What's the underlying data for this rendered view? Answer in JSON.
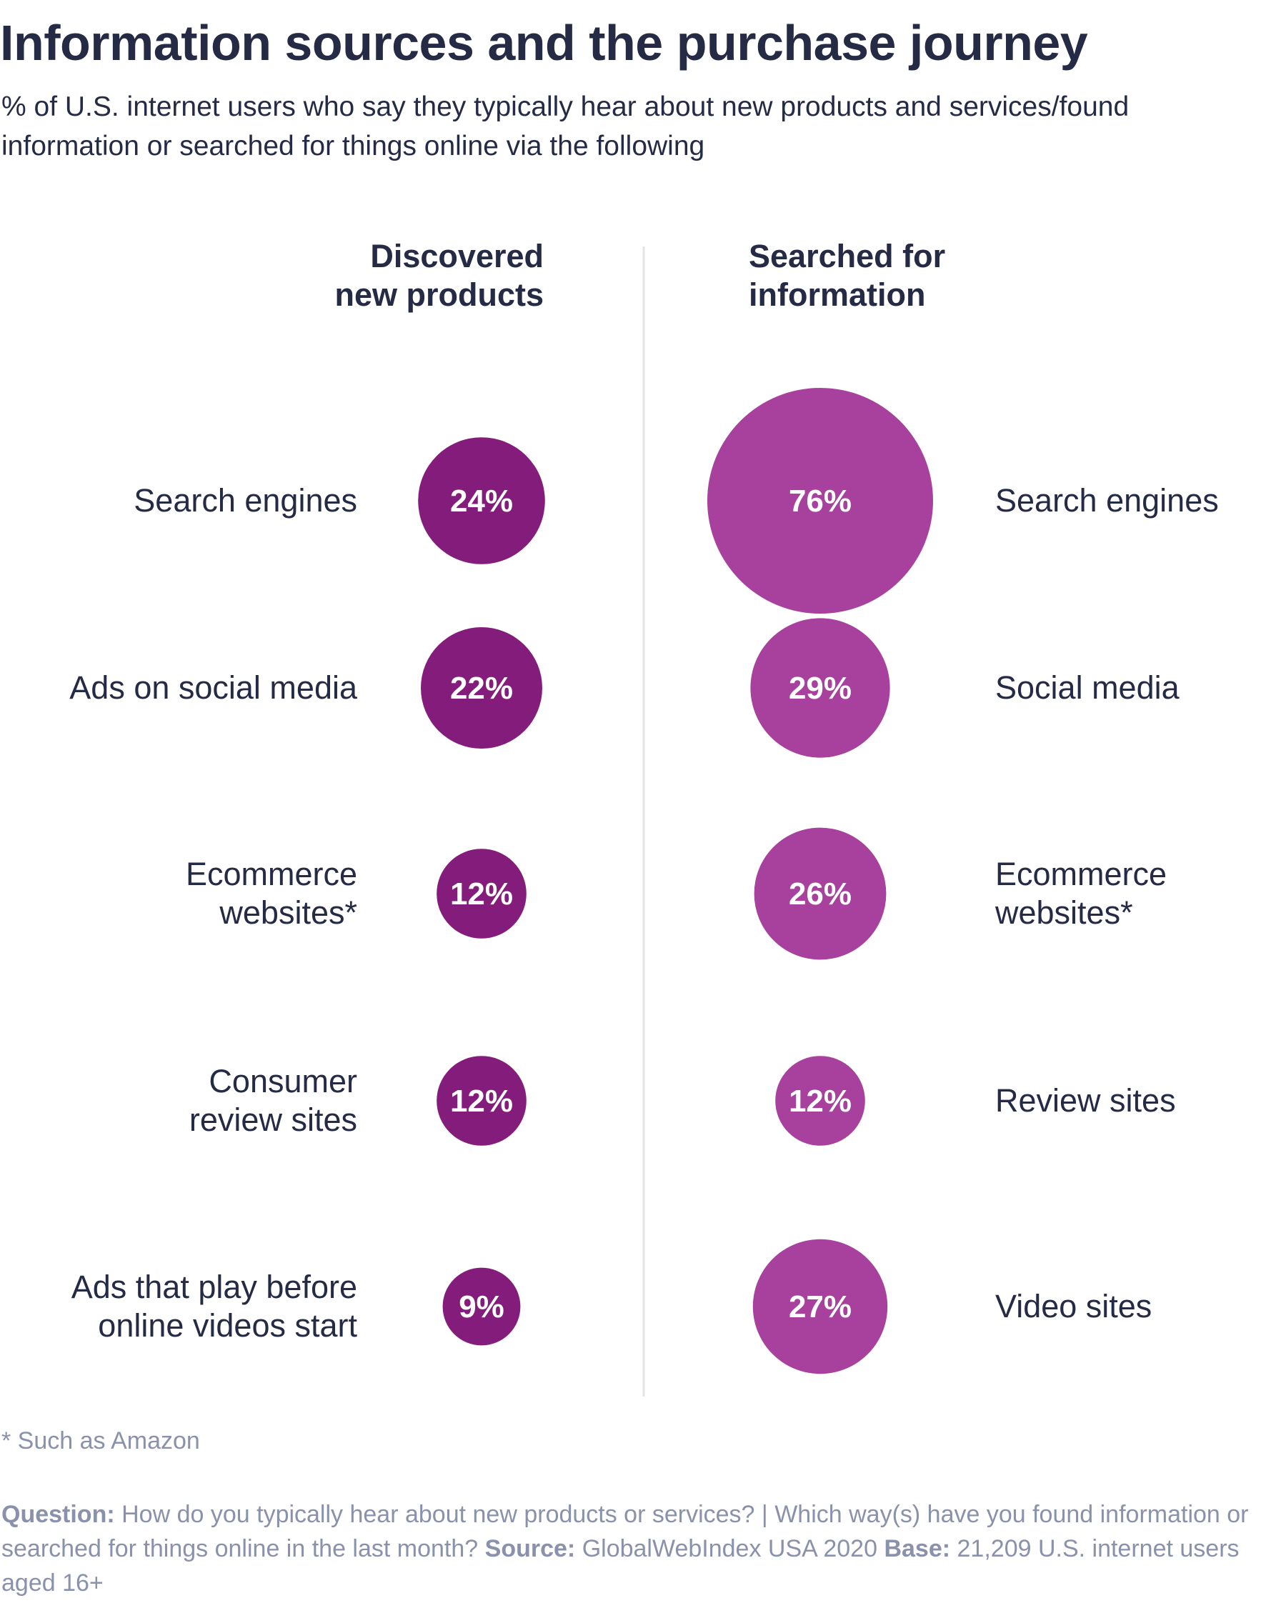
{
  "title": "Information sources and the purchase journey",
  "subtitle": "% of U.S. internet users who say they typically hear about new products and services/found information or searched for things online via the following",
  "footnote": "* Such as Amazon",
  "source_note": {
    "question_label": "Question:",
    "question_text": "How do you typically hear about new products or services? | Which way(s) have you found information or searched for things online in the last month?",
    "source_label": "Source:",
    "source_text": "GlobalWebIndex USA 2020",
    "base_label": "Base:",
    "base_text": "21,209 U.S. internet users aged 16+"
  },
  "chart_data": {
    "type": "bubble",
    "unit": "%",
    "series": [
      {
        "name": "Discovered new products",
        "color": "#841c7b",
        "categories": [
          "Search engines",
          "Ads on social media",
          "Ecommerce websites*",
          "Consumer review sites",
          "Ads that play before online videos start"
        ],
        "values": [
          24,
          22,
          12,
          12,
          9
        ],
        "value_labels": [
          "24%",
          "22%",
          "12%",
          "12%",
          "9%"
        ]
      },
      {
        "name": "Searched for information",
        "color": "#a8409d",
        "categories": [
          "Search engines",
          "Social media",
          "Ecommerce websites*",
          "Review sites",
          "Video sites"
        ],
        "values": [
          76,
          29,
          26,
          12,
          27
        ],
        "value_labels": [
          "76%",
          "29%",
          "26%",
          "12%",
          "27%"
        ]
      }
    ],
    "column_headers": [
      [
        "Discovered",
        "new products"
      ],
      [
        "Searched for",
        "information"
      ]
    ],
    "row_labels": [
      [
        [
          "Search engines"
        ],
        [
          "Ads on social media"
        ],
        [
          "Ecommerce",
          "websites*"
        ],
        [
          "Consumer",
          "review sites"
        ],
        [
          "Ads that play before",
          "online videos start"
        ]
      ],
      [
        [
          "Search engines"
        ],
        [
          "Social media"
        ],
        [
          "Ecommerce",
          "websites*"
        ],
        [
          "Review sites"
        ],
        [
          "Video sites"
        ]
      ]
    ],
    "divider_color": "#e3e4ea"
  }
}
